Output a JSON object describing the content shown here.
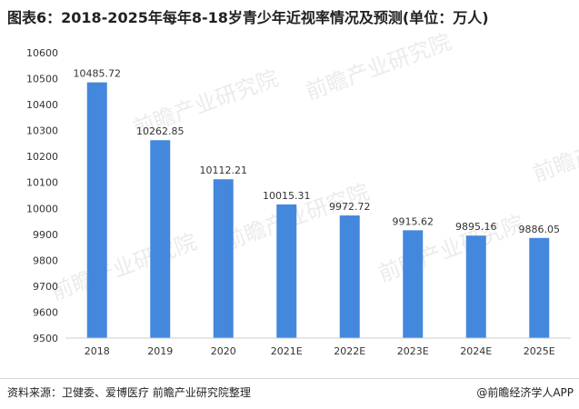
{
  "title": "图表6：2018-2025年每年8-18岁青少年近视率情况及预测(单位：万人)",
  "footer": {
    "source": "资料来源：卫健委、爱博医疗 前瞻产业研究院整理",
    "credit": "@前瞻经济学人APP"
  },
  "watermark": "前瞻产业研究院",
  "colors": {
    "bar": "#4488dd",
    "axis": "#cccccc",
    "text": "#333333"
  },
  "chart_data": {
    "type": "bar",
    "title": "图表6：2018-2025年每年8-18岁青少年近视率情况及预测(单位：万人)",
    "xlabel": "",
    "ylabel": "",
    "categories": [
      "2018",
      "2019",
      "2020",
      "2021E",
      "2022E",
      "2023E",
      "2024E",
      "2025E"
    ],
    "values": [
      10485.72,
      10262.85,
      10112.21,
      10015.31,
      9972.72,
      9915.62,
      9895.16,
      9886.05
    ],
    "data_labels": [
      "10485.72",
      "10262.85",
      "10112.21",
      "10015.31",
      "9972.72",
      "9915.62",
      "9895.16",
      "9886.05"
    ],
    "ylim": [
      9500,
      10600
    ],
    "yticks": [
      9500,
      9600,
      9700,
      9800,
      9900,
      10000,
      10100,
      10200,
      10300,
      10400,
      10500,
      10600
    ],
    "grid": false,
    "legend": "none"
  }
}
